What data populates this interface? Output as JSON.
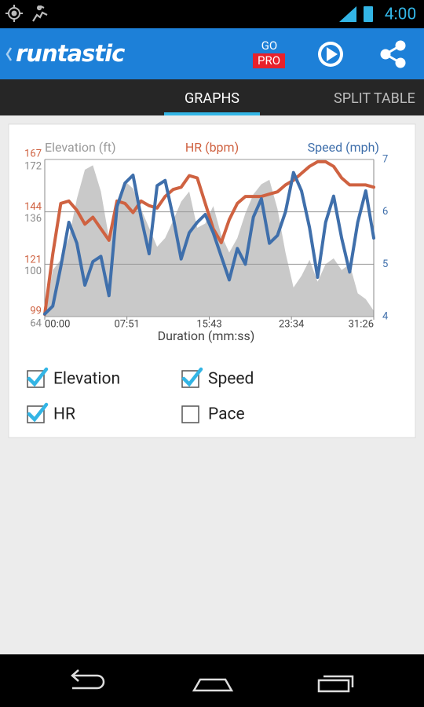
{
  "status_bar": {
    "time": "4:00"
  },
  "app_bar": {
    "logo": "runtastic",
    "go": "GO",
    "pro": "PRO"
  },
  "tabs": [
    {
      "label": "GRAPHS",
      "selected": true
    },
    {
      "label": "SPLIT TABLE",
      "selected": false
    }
  ],
  "chart_data": {
    "type": "line",
    "x_label": "Duration (mm:ss)",
    "x": [
      0,
      46,
      92,
      138,
      184,
      230,
      276,
      322,
      368,
      414,
      460,
      506,
      552,
      598,
      644,
      690,
      736,
      782,
      828,
      874,
      920,
      966,
      1012,
      1058,
      1104,
      1150,
      1196,
      1242,
      1288,
      1334,
      1380,
      1426,
      1472,
      1518,
      1564,
      1610,
      1656,
      1702,
      1748,
      1794,
      1840,
      1886
    ],
    "xlim": [
      0,
      1886
    ],
    "xticks": [
      {
        "value": 0,
        "label": "00:00"
      },
      {
        "value": 471,
        "label": "07:51"
      },
      {
        "value": 943,
        "label": "15:43"
      },
      {
        "value": 1414,
        "label": "23:34"
      },
      {
        "value": 1886,
        "label": "31:26"
      }
    ],
    "ylim": [
      64,
      172
    ],
    "yticks": [
      64,
      100,
      136,
      172
    ],
    "y2lim": [
      4,
      7
    ],
    "y2ticks": [
      4,
      5,
      6,
      7
    ],
    "y3lim": [
      99,
      167
    ],
    "y3ticks": [
      99,
      121,
      144,
      167
    ],
    "grid": true,
    "series": [
      {
        "name": "Elevation (ft)",
        "color": "#c9c9c9",
        "axis": "y",
        "fill": true,
        "values": [
          64,
          96,
          103,
          118,
          145,
          165,
          168,
          150,
          118,
          140,
          157,
          152,
          138,
          125,
          112,
          118,
          130,
          143,
          150,
          125,
          128,
          140,
          120,
          108,
          118,
          135,
          148,
          155,
          158,
          138,
          108,
          84,
          92,
          103,
          88,
          100,
          104,
          96,
          100,
          80,
          76,
          68
        ]
      },
      {
        "name": "HR (bpm)",
        "color": "#cf6241",
        "axis": "y3",
        "fill": false,
        "values": [
          100,
          126,
          148,
          149,
          145,
          139,
          142,
          137,
          132,
          149,
          148,
          144,
          149,
          147,
          146,
          151,
          154,
          155,
          160,
          159,
          148,
          137,
          131,
          141,
          148,
          151,
          151,
          151,
          152,
          153,
          156,
          158,
          161,
          164,
          166,
          166,
          164,
          159,
          156,
          156,
          156,
          155
        ]
      },
      {
        "name": "Speed (mph)",
        "color": "#3f6fab",
        "axis": "y2",
        "fill": false,
        "values": [
          4.05,
          4.2,
          4.95,
          5.8,
          5.4,
          4.6,
          5.05,
          5.15,
          4.4,
          6.1,
          6.55,
          6.7,
          5.9,
          5.2,
          6.5,
          6.6,
          5.9,
          5.1,
          5.6,
          5.8,
          5.95,
          5.6,
          5.15,
          4.7,
          5.3,
          5.0,
          5.9,
          6.25,
          5.4,
          5.55,
          6.0,
          6.75,
          6.4,
          5.7,
          4.75,
          5.8,
          6.3,
          5.5,
          4.85,
          5.8,
          6.4,
          5.5
        ]
      }
    ]
  },
  "toggles": [
    {
      "label": "Elevation",
      "checked": true
    },
    {
      "label": "Speed",
      "checked": true
    },
    {
      "label": "HR",
      "checked": true
    },
    {
      "label": "Pace",
      "checked": false
    }
  ]
}
